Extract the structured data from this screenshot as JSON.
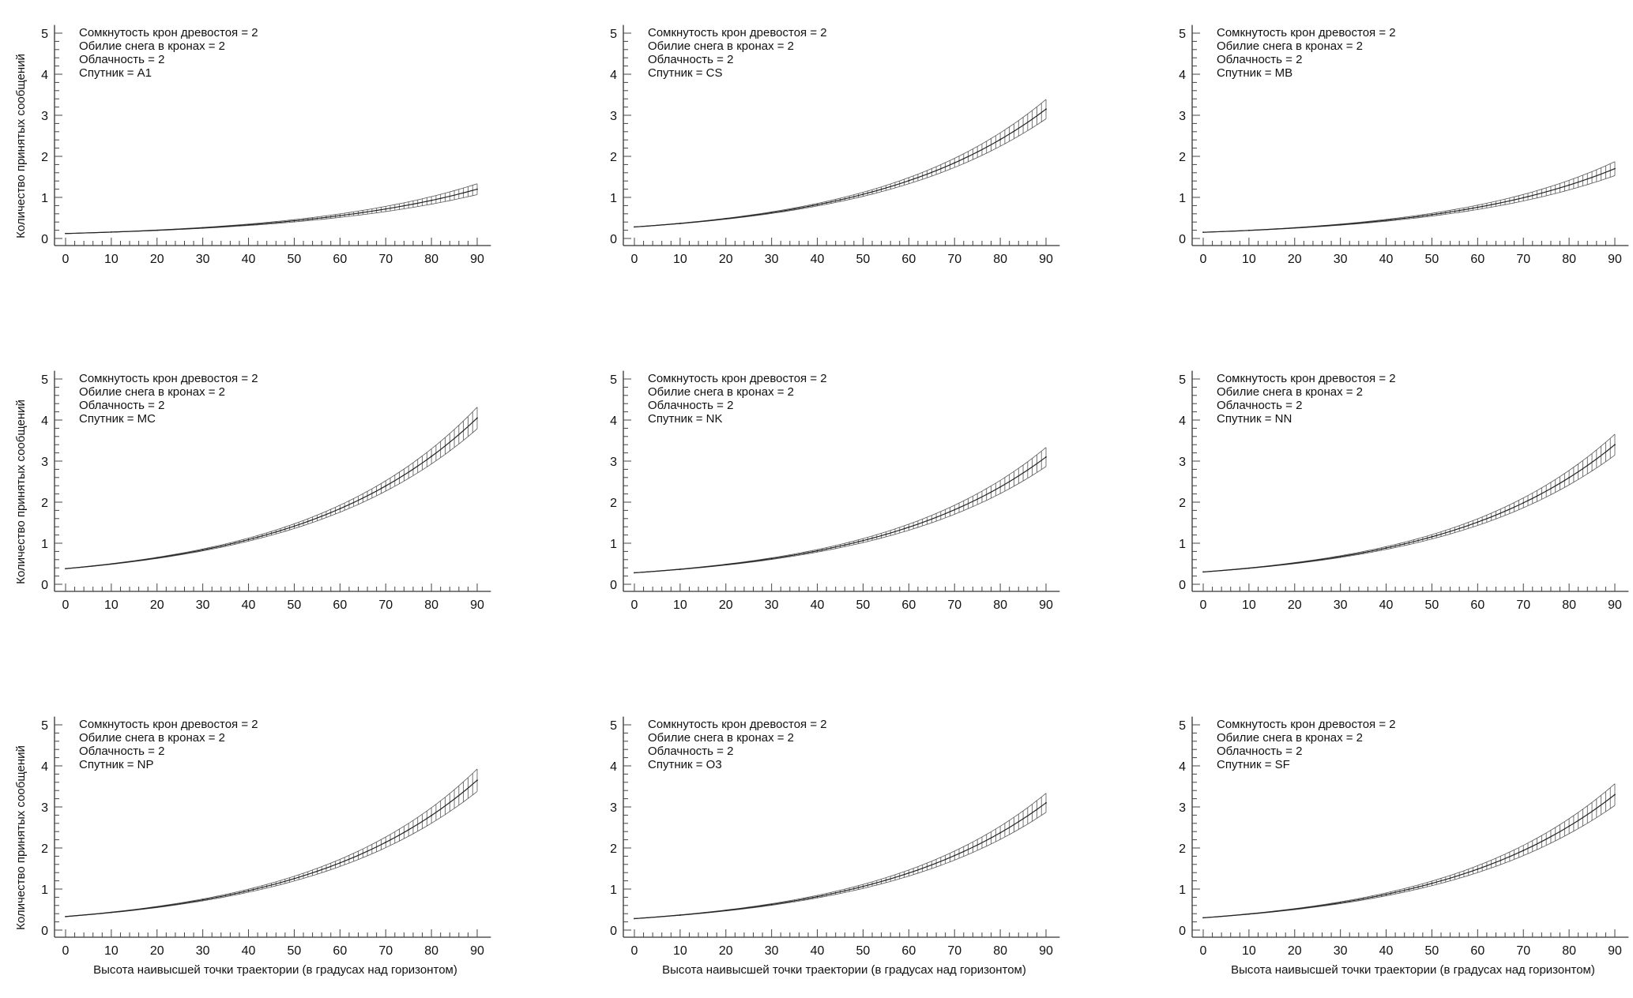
{
  "chart_data": {
    "type": "line",
    "layout": "3x3 grid",
    "xlabel": "Высота наивысшей точки траектории (в градусах над горизонтом)",
    "ylabel": "Количество принятых сообщений",
    "xlim": [
      0,
      90
    ],
    "ylim": [
      0,
      5
    ],
    "x_ticks": [
      "0",
      "10",
      "20",
      "30",
      "40",
      "50",
      "60",
      "70",
      "80",
      "90"
    ],
    "y_ticks": [
      "0",
      "1",
      "2",
      "3",
      "4",
      "5"
    ],
    "x": [
      0,
      10,
      20,
      30,
      40,
      50,
      60,
      70,
      80,
      90
    ],
    "band_style": "hatched confidence band",
    "panels": [
      {
        "annotations": [
          "Сомкнутость крон древостоя = 2",
          "Обилие снега в кронах = 2",
          "Облачность = 2",
          "Спутник = A1"
        ],
        "values": [
          0.12,
          0.155,
          0.2,
          0.258,
          0.333,
          0.43,
          0.556,
          0.718,
          0.927,
          1.2
        ],
        "band_halfwidth_pct_at_90": 10
      },
      {
        "annotations": [
          "Сомкнутость крон древостоя = 2",
          "Обилие снега в кронах = 2",
          "Облачность = 2",
          "Спутник = CS"
        ],
        "values": [
          0.28,
          0.366,
          0.48,
          0.628,
          0.822,
          1.075,
          1.407,
          1.841,
          2.41,
          3.15
        ],
        "band_halfwidth_pct_at_90": 6.5
      },
      {
        "annotations": [
          "Сомкнутость крон древостоя = 2",
          "Обилие снега в кронах = 2",
          "Облачность = 2",
          "Спутник =  MB"
        ],
        "values": [
          0.15,
          0.196,
          0.257,
          0.337,
          0.442,
          0.579,
          0.758,
          0.992,
          1.3,
          1.7
        ],
        "band_halfwidth_pct_at_90": 9
      },
      {
        "annotations": [
          "Сомкнутость крон древостоя = 2",
          "Обилие снега в кронах = 2",
          "Облачность = 2",
          "Спутник = MC"
        ],
        "values": [
          0.38,
          0.494,
          0.643,
          0.836,
          1.088,
          1.415,
          1.841,
          2.395,
          3.115,
          4.05
        ],
        "band_halfwidth_pct_at_90": 5.5
      },
      {
        "annotations": [
          "Сомкнутость крон древостоя = 2",
          "Обилие снега в кронах = 2",
          "Облачность = 2",
          "Спутник = NK"
        ],
        "values": [
          0.28,
          0.366,
          0.478,
          0.624,
          0.815,
          1.064,
          1.39,
          1.815,
          2.37,
          3.1
        ],
        "band_halfwidth_pct_at_90": 6.5
      },
      {
        "annotations": [
          "Сомкнутость крон древостоя = 2",
          "Обилие снега в кронах = 2",
          "Облачность = 2",
          "Спутник = NN"
        ],
        "values": [
          0.3,
          0.393,
          0.515,
          0.674,
          0.883,
          1.156,
          1.514,
          1.983,
          2.597,
          3.4
        ],
        "band_halfwidth_pct_at_90": 6.5
      },
      {
        "annotations": [
          "Сомкнутость крон древостоя = 2",
          "Обилие снега в кронах = 2",
          "Облачность = 2",
          "Спутник = NP"
        ],
        "values": [
          0.33,
          0.431,
          0.563,
          0.735,
          0.96,
          1.254,
          1.637,
          2.138,
          2.792,
          3.65
        ],
        "band_halfwidth_pct_at_90": 6.5
      },
      {
        "annotations": [
          "Сомкнутость крон древостоя = 2",
          "Обилие снега в кронах = 2",
          "Облачность = 2",
          "Спутник = O3"
        ],
        "values": [
          0.28,
          0.366,
          0.478,
          0.624,
          0.815,
          1.064,
          1.39,
          1.815,
          2.37,
          3.1
        ],
        "band_halfwidth_pct_at_90": 6.5
      },
      {
        "annotations": [
          "Сомкнутость крон древостоя = 2",
          "Обилие снега в кронах = 2",
          "Облачность = 2",
          "Спутник = SF"
        ],
        "values": [
          0.3,
          0.392,
          0.511,
          0.667,
          0.871,
          1.138,
          1.485,
          1.939,
          2.531,
          3.3
        ],
        "band_halfwidth_pct_at_90": 7
      }
    ]
  }
}
